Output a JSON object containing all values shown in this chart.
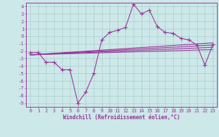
{
  "xlabel": "Windchill (Refroidissement éolien,°C)",
  "x_data": [
    0,
    1,
    2,
    3,
    4,
    5,
    6,
    7,
    8,
    9,
    10,
    11,
    12,
    13,
    14,
    15,
    16,
    17,
    18,
    19,
    20,
    21,
    22,
    23
  ],
  "y_main": [
    -2.2,
    -2.2,
    -3.5,
    -3.5,
    -4.5,
    -4.5,
    -9.0,
    -7.5,
    -5.0,
    -0.5,
    0.5,
    0.8,
    1.2,
    4.3,
    3.0,
    3.5,
    1.3,
    0.5,
    0.4,
    -0.3,
    -0.5,
    -1.2,
    -3.9,
    -1.1
  ],
  "reg_lines": [
    {
      "x": [
        0,
        23
      ],
      "y": [
        -2.5,
        -1.8
      ]
    },
    {
      "x": [
        0,
        23
      ],
      "y": [
        -2.5,
        -1.5
      ]
    },
    {
      "x": [
        0,
        23
      ],
      "y": [
        -2.5,
        -1.2
      ]
    },
    {
      "x": [
        0,
        23
      ],
      "y": [
        -2.5,
        -0.9
      ]
    }
  ],
  "line_color": "#993399",
  "bg_color": "#cce8e8",
  "grid_color": "#aacccc",
  "xlim": [
    -0.5,
    23.5
  ],
  "ylim": [
    -9.5,
    4.5
  ],
  "yticks": [
    4,
    3,
    2,
    1,
    0,
    -1,
    -2,
    -3,
    -4,
    -5,
    -6,
    -7,
    -8,
    -9
  ],
  "xticks": [
    0,
    1,
    2,
    3,
    4,
    5,
    6,
    7,
    8,
    9,
    10,
    11,
    12,
    13,
    14,
    15,
    16,
    17,
    18,
    19,
    20,
    21,
    22,
    23
  ],
  "marker": "+",
  "markersize": 4,
  "linewidth": 0.8,
  "tick_fontsize": 5.0,
  "xlabel_fontsize": 5.5
}
